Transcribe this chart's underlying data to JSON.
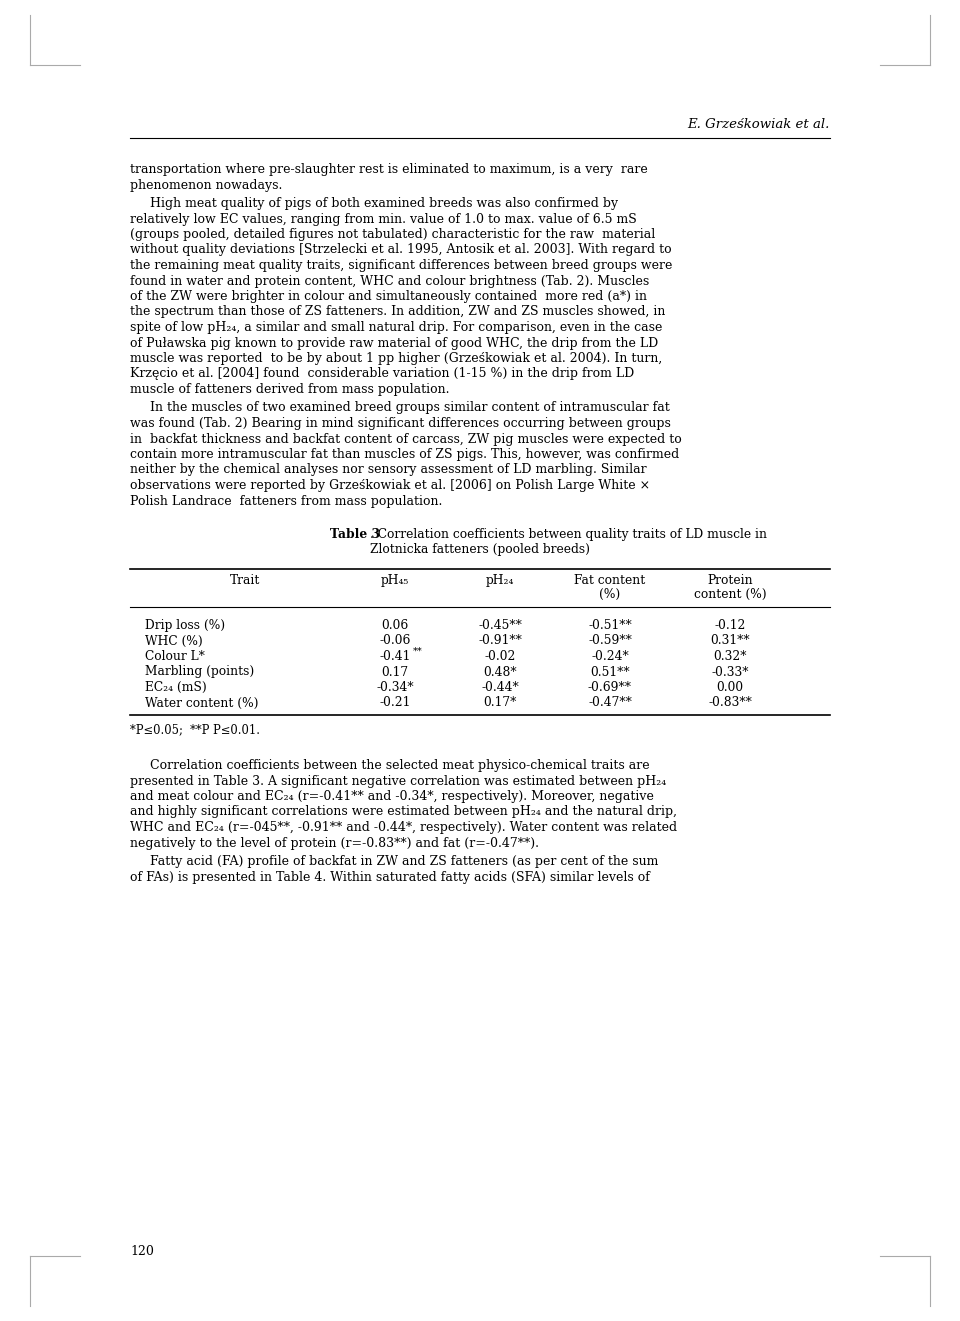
{
  "bg_color": "#ffffff",
  "page_width": 9.6,
  "page_height": 13.21,
  "header_author": "E. Grześkowiak et al.",
  "table_title_bold": "Table 3",
  "table_title_rest": ". Correlation coefficients between quality traits of LD muscle in",
  "table_title_line2": "Zlotnicka fatteners (pooled breeds)",
  "col_headers": [
    "Trait",
    "pH₄₅",
    "pH₂₄",
    "Fat content\n(%)",
    "Protein\ncontent (%)"
  ],
  "rows": [
    [
      "Drip loss (%)",
      "0.06",
      "-0.45**",
      "-0.51**",
      "-0.12"
    ],
    [
      "WHC (%)",
      "-0.06",
      "-0.91**",
      "-0.59**",
      "0.31**"
    ],
    [
      "Colour L*",
      "-0.41",
      "-0.02",
      "-0.24*",
      "0.32*"
    ],
    [
      "Marbling (points)",
      "0.17",
      "0.48*",
      "0.51**",
      "-0.33*"
    ],
    [
      "EC₂₄ (mS)",
      "-0.34*",
      "-0.44*",
      "-0.69**",
      "0.00"
    ],
    [
      "Water content (%)",
      "-0.21",
      "0.17*",
      "-0.47**",
      "-0.83**"
    ]
  ],
  "footnote": "*P≤0.05;  **P P≤0.01.",
  "page_number": "120"
}
